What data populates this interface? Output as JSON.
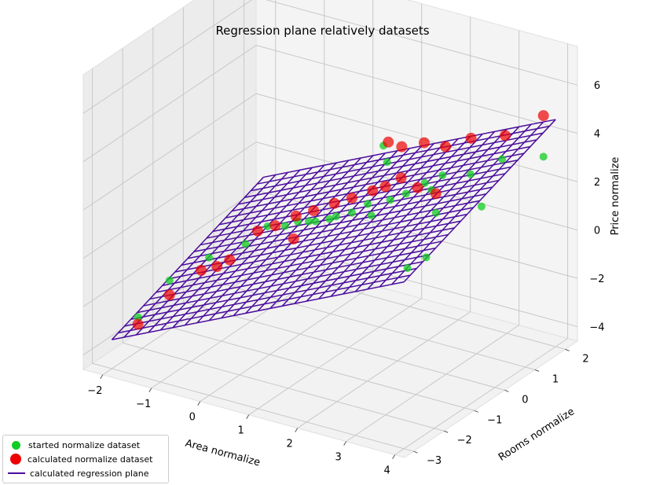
{
  "chart_data": {
    "type": "scatter",
    "title": "Regression plane relatively datasets",
    "xlabel": "Area normalize",
    "ylabel": "Rooms normalize",
    "zlabel": "Price normalize",
    "xlim": [
      -2.4,
      4.2
    ],
    "ylim": [
      -3.3,
      2.4
    ],
    "zlim": [
      -4.6,
      7.6
    ],
    "x_ticks": [
      "−2",
      "−1",
      "0",
      "1",
      "2",
      "3",
      "4"
    ],
    "y_ticks": [
      "−3",
      "−2",
      "−1",
      "0",
      "1",
      "2"
    ],
    "z_ticks": [
      "−4",
      "−2",
      "0",
      "2",
      "4",
      "6"
    ],
    "grid": true,
    "legend_position": "lower-left",
    "series": [
      {
        "name": "started normalize dataset",
        "color": "#11cc22",
        "marker": "circle",
        "points": [
          [
            -1.9,
            -2.3,
            -3.0
          ],
          [
            -1.5,
            -1.9,
            -1.6
          ],
          [
            -1.0,
            -1.4,
            -0.8
          ],
          [
            -0.5,
            -1.0,
            -0.3
          ],
          [
            -0.3,
            -0.6,
            0.2
          ],
          [
            0.0,
            -0.5,
            0.3
          ],
          [
            0.2,
            -0.4,
            0.5
          ],
          [
            0.3,
            -0.2,
            0.4
          ],
          [
            0.5,
            -0.3,
            0.6
          ],
          [
            0.6,
            0.0,
            0.5
          ],
          [
            0.8,
            -0.1,
            0.8
          ],
          [
            1.0,
            0.1,
            0.9
          ],
          [
            1.2,
            0.3,
            1.2
          ],
          [
            1.4,
            0.1,
            1.0
          ],
          [
            1.6,
            0.4,
            1.5
          ],
          [
            1.8,
            0.6,
            1.7
          ],
          [
            2.0,
            0.9,
            2.0
          ],
          [
            2.2,
            0.8,
            1.9
          ],
          [
            2.3,
            1.0,
            2.4
          ],
          [
            2.6,
            0.3,
            1.6
          ],
          [
            3.0,
            0.8,
            3.0
          ],
          [
            3.4,
            1.2,
            3.5
          ],
          [
            3.6,
            0.2,
            2.5
          ],
          [
            4.0,
            1.6,
            3.6
          ],
          [
            0.9,
            1.3,
            2.6
          ],
          [
            1.1,
            1.1,
            2.2
          ],
          [
            2.9,
            -0.5,
            0.6
          ],
          [
            2.7,
            -0.8,
            0.3
          ]
        ]
      },
      {
        "name": "calculated normalize dataset",
        "color": "#ee0000",
        "marker": "circle",
        "points": [
          [
            -1.9,
            -2.3,
            -3.3
          ],
          [
            -1.5,
            -1.9,
            -2.2
          ],
          [
            -1.1,
            -1.5,
            -1.3
          ],
          [
            -0.7,
            -1.2,
            -0.9
          ],
          [
            -0.5,
            -0.6,
            -0.1
          ],
          [
            -0.2,
            -0.5,
            0.2
          ],
          [
            0.1,
            -0.3,
            0.6
          ],
          [
            0.4,
            -0.2,
            0.9
          ],
          [
            0.7,
            0.0,
            1.2
          ],
          [
            1.0,
            0.1,
            1.5
          ],
          [
            1.3,
            0.3,
            1.8
          ],
          [
            1.5,
            0.4,
            2.0
          ],
          [
            1.7,
            0.6,
            2.3
          ],
          [
            1.0,
            1.3,
            2.8
          ],
          [
            1.4,
            1.1,
            3.0
          ],
          [
            1.8,
            1.2,
            3.3
          ],
          [
            2.3,
            1.1,
            3.5
          ],
          [
            2.7,
            1.3,
            3.9
          ],
          [
            2.6,
            0.3,
            2.4
          ],
          [
            3.4,
            1.3,
            4.4
          ],
          [
            4.0,
            1.6,
            5.3
          ],
          [
            -0.9,
            -1.3,
            -1.2
          ],
          [
            2.1,
            0.5,
            2.2
          ],
          [
            0.3,
            -0.7,
            0.1
          ]
        ]
      },
      {
        "name": "calculated regression plane",
        "color": "#4b0d9c",
        "plane": {
          "intercept": 0.0,
          "coef_x": 0.95,
          "coef_y": 0.5,
          "x_range": [
            -2.0,
            4.0
          ],
          "y_range": [
            -3.0,
            2.0
          ],
          "grid_lines": 24
        }
      }
    ]
  }
}
